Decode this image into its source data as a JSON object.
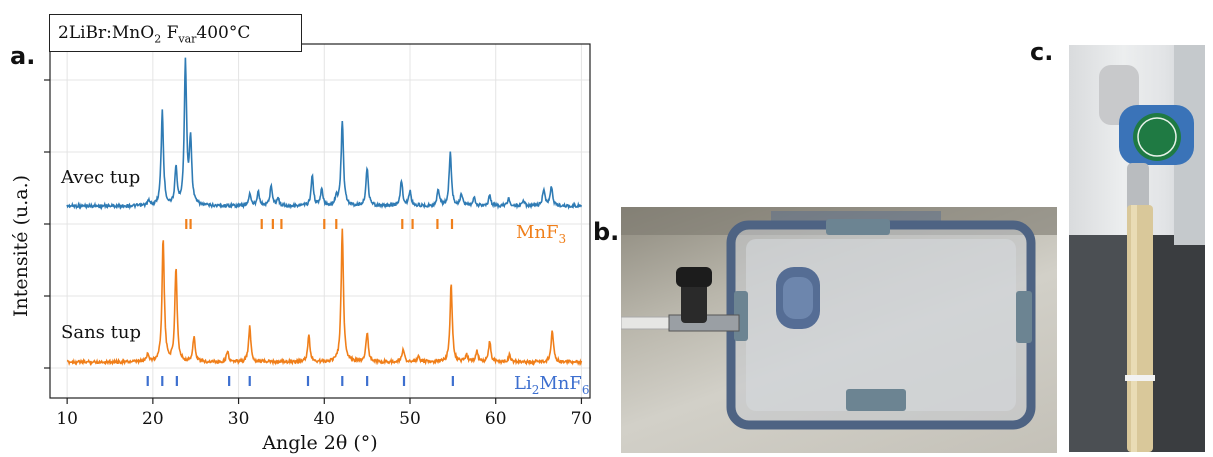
{
  "figure": {
    "panel_a_letter": "a.",
    "panel_b_letter": "b.",
    "panel_c_letter": "c.",
    "title_prefix": "2LiBr:MnO",
    "title_sub1": "2",
    "title_mid": " F",
    "title_sub2": "var",
    "title_suffix": "400°C"
  },
  "chart_data": {
    "type": "line",
    "xlabel": "Angle 2θ (°)",
    "ylabel": "Intensité (u.a.)",
    "xlim": [
      8,
      71
    ],
    "x_ticks": [
      "10",
      "20",
      "30",
      "40",
      "50",
      "60",
      "70"
    ],
    "x_tick_values": [
      10,
      20,
      30,
      40,
      50,
      60,
      70
    ],
    "grid": true,
    "series": [
      {
        "name": "Avec tup",
        "color": "#2f7bb4",
        "peaks": [
          [
            19.5,
            0.03
          ],
          [
            21.1,
            0.64
          ],
          [
            22.7,
            0.24
          ],
          [
            23.8,
            0.96
          ],
          [
            24.4,
            0.44
          ],
          [
            31.3,
            0.08
          ],
          [
            32.3,
            0.1
          ],
          [
            33.8,
            0.14
          ],
          [
            34.6,
            0.05
          ],
          [
            38.6,
            0.2
          ],
          [
            39.7,
            0.11
          ],
          [
            41.4,
            0.06
          ],
          [
            42.1,
            0.58
          ],
          [
            45.0,
            0.26
          ],
          [
            49.0,
            0.17
          ],
          [
            50.0,
            0.1
          ],
          [
            53.3,
            0.11
          ],
          [
            54.7,
            0.36
          ],
          [
            56.0,
            0.08
          ],
          [
            57.5,
            0.05
          ],
          [
            59.3,
            0.07
          ],
          [
            61.5,
            0.05
          ],
          [
            63.2,
            0.04
          ],
          [
            65.6,
            0.11
          ],
          [
            66.5,
            0.13
          ]
        ]
      },
      {
        "name": "Sans tup",
        "color": "#f07f1a",
        "peaks": [
          [
            19.4,
            0.06
          ],
          [
            21.2,
            0.91
          ],
          [
            22.7,
            0.69
          ],
          [
            24.8,
            0.18
          ],
          [
            28.7,
            0.08
          ],
          [
            31.3,
            0.26
          ],
          [
            38.2,
            0.19
          ],
          [
            42.1,
            0.98
          ],
          [
            45.0,
            0.22
          ],
          [
            49.2,
            0.1
          ],
          [
            51.0,
            0.04
          ],
          [
            54.8,
            0.57
          ],
          [
            56.6,
            0.05
          ],
          [
            57.8,
            0.08
          ],
          [
            59.3,
            0.15
          ],
          [
            61.6,
            0.05
          ],
          [
            66.6,
            0.24
          ]
        ]
      }
    ],
    "reference_phases": [
      {
        "name_main": "MnF",
        "name_sub": "3",
        "color": "#f07f1a",
        "positions": [
          23.9,
          24.4,
          32.7,
          34.0,
          35.0,
          40.0,
          41.4,
          49.1,
          50.3,
          53.2,
          54.9
        ]
      },
      {
        "name_main": "Li",
        "name_sub": "2",
        "name_suffix": "MnF",
        "name_sub2": "6",
        "color": "#3d6fcf",
        "positions": [
          19.4,
          21.1,
          22.8,
          28.9,
          31.3,
          38.1,
          42.1,
          45.0,
          49.3,
          55.0
        ]
      }
    ]
  }
}
